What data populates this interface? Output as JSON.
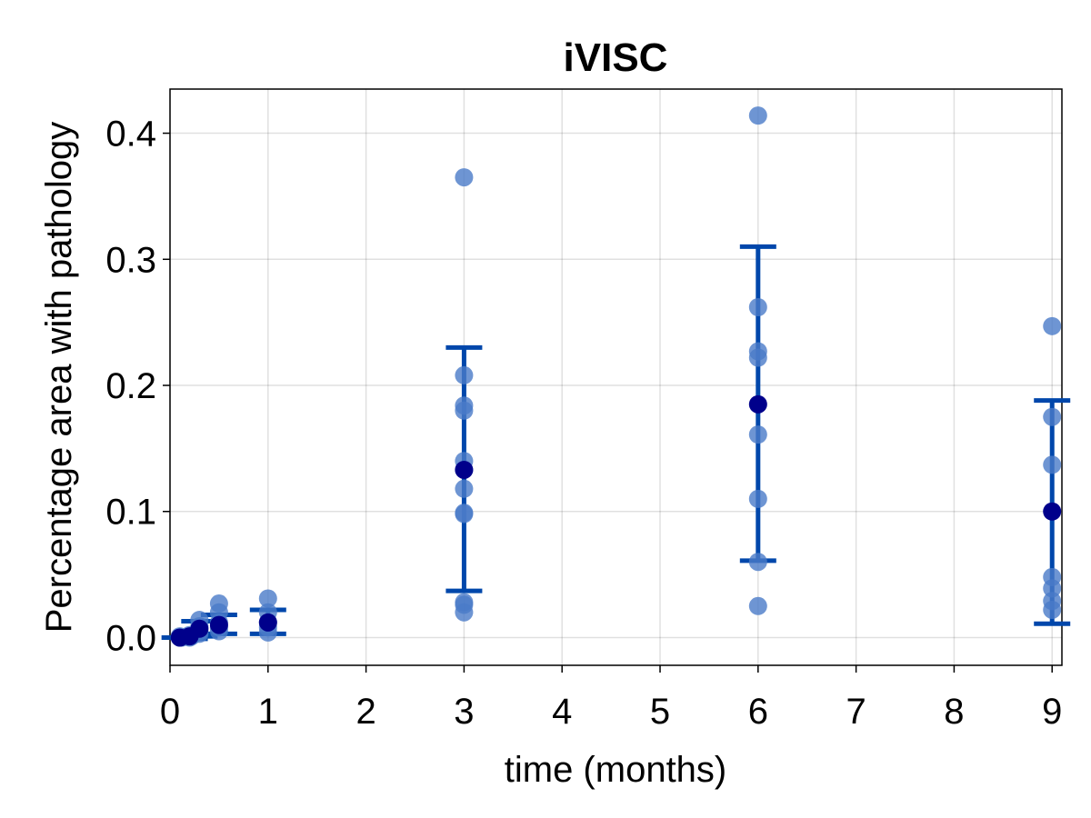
{
  "chart_data": {
    "type": "scatter",
    "title": "iVISC",
    "xlabel": "time (months)",
    "ylabel": "Percentage area with pathology",
    "xlim": [
      0,
      9.1
    ],
    "ylim": [
      -0.022,
      0.435
    ],
    "xticks": [
      0,
      1,
      2,
      3,
      4,
      5,
      6,
      7,
      8,
      9
    ],
    "xtick_labels": [
      "0",
      "1",
      "2",
      "3",
      "4",
      "5",
      "6",
      "7",
      "8",
      "9"
    ],
    "yticks": [
      0.0,
      0.1,
      0.2,
      0.3,
      0.4
    ],
    "ytick_labels": [
      "0.0",
      "0.1",
      "0.2",
      "0.3",
      "0.4"
    ],
    "grid": true,
    "colors": {
      "points": "#4a7bc8",
      "mean": "#00008b",
      "errorbar": "#0047ab"
    },
    "points": [
      {
        "x": 0.1,
        "y": 0.0
      },
      {
        "x": 0.1,
        "y": 0.001
      },
      {
        "x": 0.12,
        "y": 0.0
      },
      {
        "x": 0.2,
        "y": 0.0
      },
      {
        "x": 0.2,
        "y": 0.002
      },
      {
        "x": 0.22,
        "y": 0.001
      },
      {
        "x": 0.3,
        "y": 0.003
      },
      {
        "x": 0.3,
        "y": 0.005
      },
      {
        "x": 0.3,
        "y": 0.009
      },
      {
        "x": 0.3,
        "y": 0.014
      },
      {
        "x": 0.5,
        "y": 0.005
      },
      {
        "x": 0.5,
        "y": 0.008
      },
      {
        "x": 0.5,
        "y": 0.012
      },
      {
        "x": 0.5,
        "y": 0.02
      },
      {
        "x": 0.5,
        "y": 0.027
      },
      {
        "x": 1,
        "y": 0.004
      },
      {
        "x": 1,
        "y": 0.008
      },
      {
        "x": 1,
        "y": 0.012
      },
      {
        "x": 1,
        "y": 0.02
      },
      {
        "x": 1,
        "y": 0.031
      },
      {
        "x": 3,
        "y": 0.365
      },
      {
        "x": 3,
        "y": 0.208
      },
      {
        "x": 3,
        "y": 0.184
      },
      {
        "x": 3,
        "y": 0.18
      },
      {
        "x": 3,
        "y": 0.14
      },
      {
        "x": 3,
        "y": 0.133
      },
      {
        "x": 3,
        "y": 0.118
      },
      {
        "x": 3,
        "y": 0.099
      },
      {
        "x": 3,
        "y": 0.098
      },
      {
        "x": 3,
        "y": 0.028
      },
      {
        "x": 3,
        "y": 0.026
      },
      {
        "x": 3,
        "y": 0.02
      },
      {
        "x": 6,
        "y": 0.414
      },
      {
        "x": 6,
        "y": 0.262
      },
      {
        "x": 6,
        "y": 0.227
      },
      {
        "x": 6,
        "y": 0.222
      },
      {
        "x": 6,
        "y": 0.161
      },
      {
        "x": 6,
        "y": 0.11
      },
      {
        "x": 6,
        "y": 0.06
      },
      {
        "x": 6,
        "y": 0.025
      },
      {
        "x": 9,
        "y": 0.247
      },
      {
        "x": 9,
        "y": 0.175
      },
      {
        "x": 9,
        "y": 0.137
      },
      {
        "x": 9,
        "y": 0.048
      },
      {
        "x": 9,
        "y": 0.039
      },
      {
        "x": 9,
        "y": 0.029
      },
      {
        "x": 9,
        "y": 0.022
      }
    ],
    "means": [
      {
        "x": 0.1,
        "y": 0.0,
        "lower": 0.0,
        "upper": 0.0
      },
      {
        "x": 0.2,
        "y": 0.001,
        "lower": -0.001,
        "upper": 0.002
      },
      {
        "x": 0.3,
        "y": 0.007,
        "lower": 0.001,
        "upper": 0.013
      },
      {
        "x": 0.5,
        "y": 0.01,
        "lower": 0.003,
        "upper": 0.018
      },
      {
        "x": 1,
        "y": 0.012,
        "lower": 0.003,
        "upper": 0.022
      },
      {
        "x": 3,
        "y": 0.133,
        "lower": 0.037,
        "upper": 0.23
      },
      {
        "x": 6,
        "y": 0.185,
        "lower": 0.061,
        "upper": 0.31
      },
      {
        "x": 9,
        "y": 0.1,
        "lower": 0.011,
        "upper": 0.188
      }
    ]
  }
}
